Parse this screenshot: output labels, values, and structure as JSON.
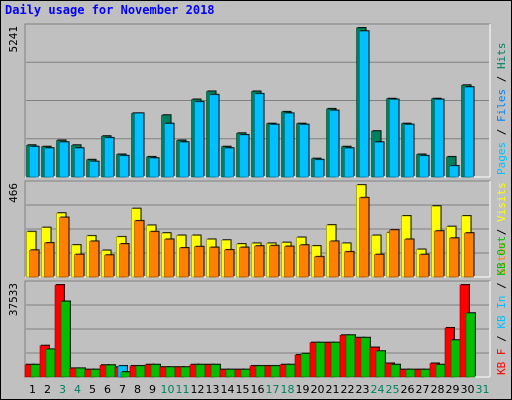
{
  "title": "Daily usage for November 2018",
  "colors": {
    "pages": "#00c0ff",
    "files": "#0080ff",
    "hits": "#00805f",
    "visits": "#ffff00",
    "sites": "#ff8000",
    "kb_in": "#00c0ff",
    "kb_out": "#00c000",
    "kb_f": "#ff0000",
    "weekend_label": "#00805f",
    "weekday_label": "#000000"
  },
  "chart_data": {
    "type": "bar",
    "categories": [
      "1",
      "2",
      "3",
      "4",
      "5",
      "6",
      "7",
      "8",
      "9",
      "10",
      "11",
      "12",
      "13",
      "14",
      "15",
      "16",
      "17",
      "18",
      "19",
      "20",
      "21",
      "22",
      "23",
      "24",
      "25",
      "26",
      "27",
      "28",
      "29",
      "30",
      "31"
    ],
    "weekend_days": [
      3,
      4,
      10,
      11,
      17,
      18,
      24,
      25,
      31
    ],
    "panels": [
      {
        "id": "hits-files-pages",
        "ymax_label": "5241",
        "ymax": 5241,
        "axis_text": [
          {
            "text": "Pages",
            "color": "#00c0ff"
          },
          {
            "text": " / ",
            "color": "#000000"
          },
          {
            "text": "Files",
            "color": "#0080ff"
          },
          {
            "text": " / ",
            "color": "#000000"
          },
          {
            "text": "Hits",
            "color": "#00805f"
          }
        ],
        "series": [
          {
            "key": "hits",
            "color": "#00805f",
            "values": [
              1115,
              1064,
              1283,
              1115,
              605,
              1434,
              791,
              2237,
              706,
              2171,
              1283,
              2724,
              3008,
              1064,
              1536,
              3008,
              1875,
              2290,
              1875,
              645,
              2395,
              1064,
              5241,
              1611,
              2752,
              1875,
              791,
              2752,
              706,
              3225,
              null
            ]
          },
          {
            "key": "files",
            "color": "#00c0ff",
            "values": [
              1064,
              1011,
              1220,
              1011,
              540,
              1375,
              745,
              2237,
              660,
              1875,
              1220,
              2642,
              2890,
              1011,
              1478,
              2924,
              1841,
              2237,
              1841,
              605,
              2336,
              1011,
              5124,
              1220,
              2724,
              1841,
              745,
              2724,
              388,
              3158,
              null
            ]
          }
        ]
      },
      {
        "id": "visits-sites",
        "ymax_label": "466",
        "ymax": 466,
        "axis_text": [
          {
            "text": "Sites",
            "color": "#ff8000"
          },
          {
            "text": " / ",
            "color": "#000000"
          },
          {
            "text": "Visits",
            "color": "#ffff00"
          }
        ],
        "series": [
          {
            "key": "visits",
            "color": "#ffff00",
            "values": [
              229,
              250,
              323,
              162,
              208,
              134,
              203,
              346,
              261,
              222,
              210,
              210,
              190,
              186,
              167,
              170,
              170,
              174,
              200,
              157,
              263,
              170,
              466,
              210,
              224,
              309,
              139,
              358,
              255,
              309,
              null
            ]
          },
          {
            "key": "sites",
            "color": "#ff8000",
            "values": [
              135,
              172,
              301,
              113,
              180,
              110,
              167,
              284,
              229,
              190,
              147,
              153,
              149,
              137,
              149,
              156,
              158,
              154,
              161,
              102,
              180,
              127,
              401,
              113,
              238,
              190,
              113,
              232,
              196,
              222,
              null
            ]
          }
        ]
      },
      {
        "id": "kb-f-in-out",
        "ymax_label": "37533",
        "ymax": 37533,
        "axis_text": [
          {
            "text": "KB F",
            "color": "#ff0000"
          },
          {
            "text": " / ",
            "color": "#000000"
          },
          {
            "text": "KB In",
            "color": "#00c0ff"
          },
          {
            "text": " / ",
            "color": "#000000"
          },
          {
            "text": "KB Out",
            "color": "#00c000"
          }
        ],
        "series": [
          {
            "key": "kb_f",
            "color": "#ff0000",
            "values": [
              5000,
              12762,
              37533,
              3500,
              3000,
              4800,
              4000,
              4500,
              5000,
              4000,
              4000,
              5000,
              5000,
              3000,
              3000,
              4500,
              4500,
              5000,
              9000,
              14000,
              14000,
              17000,
              16000,
              12000,
              5500,
              3000,
              3000,
              5500,
              20000,
              37533,
              null
            ]
          },
          {
            "key": "kb_in",
            "color": "#00c0ff",
            "values": [
              0,
              0,
              0,
              0,
              0,
              0,
              4500,
              0,
              0,
              0,
              0,
              0,
              0,
              0,
              0,
              0,
              0,
              0,
              0,
              0,
              0,
              0,
              0,
              0,
              0,
              0,
              0,
              0,
              0,
              0,
              null
            ]
          },
          {
            "key": "kb_out",
            "color": "#00c000",
            "values": [
              5000,
              11260,
              30783,
              3500,
              3000,
              4800,
              2000,
              4500,
              5000,
              4000,
              4000,
              5000,
              5000,
              3000,
              3000,
              4500,
              4500,
              5000,
              9500,
              14000,
              14000,
              17000,
              16000,
              10500,
              5000,
              3000,
              3000,
              5000,
              15000,
              26000,
              null
            ]
          }
        ]
      }
    ]
  }
}
